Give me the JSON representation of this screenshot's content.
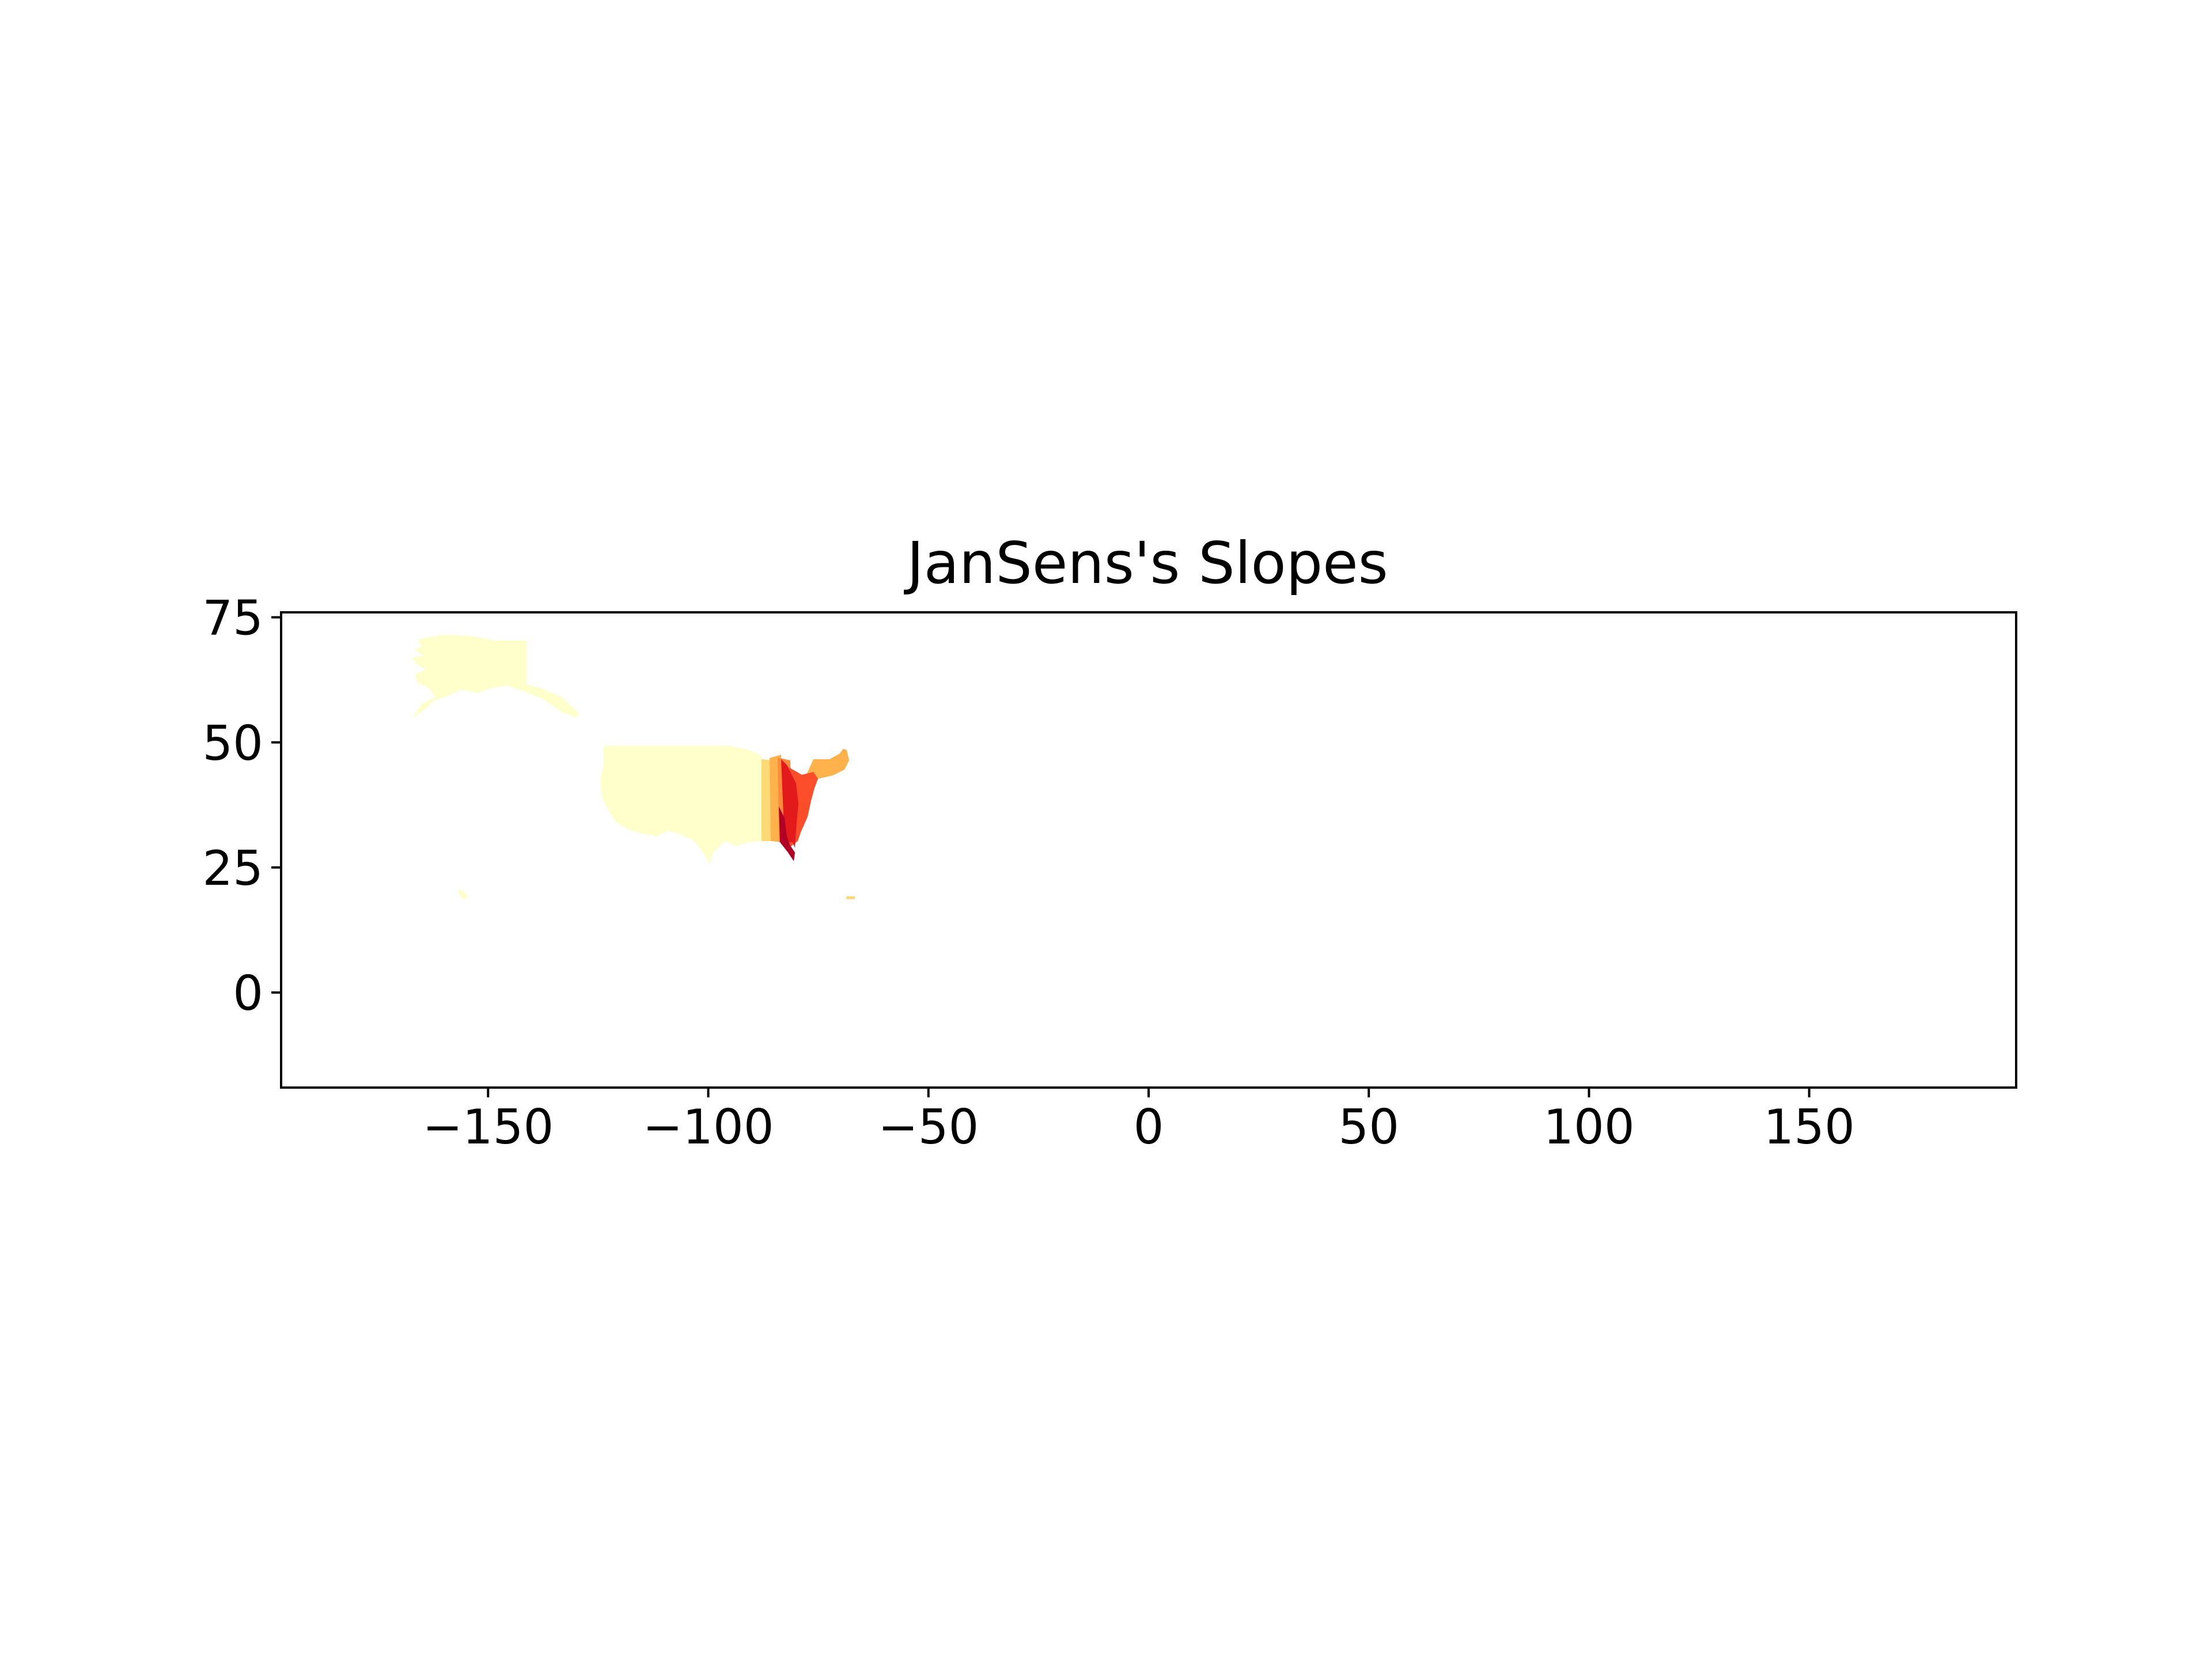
{
  "chart_data": {
    "type": "heatmap",
    "title": "JanSens's Slopes",
    "xlabel": "",
    "ylabel": "",
    "xlim": [
      -197,
      197
    ],
    "ylim": [
      -19,
      76
    ],
    "x_ticks": [
      -150,
      -100,
      -50,
      0,
      50,
      100,
      150
    ],
    "x_tick_labels": [
      "−150",
      "−100",
      "−50",
      "0",
      "50",
      "100",
      "150"
    ],
    "y_ticks": [
      75,
      50,
      25,
      0
    ],
    "y_tick_labels": [
      "75",
      "50",
      "25",
      "0"
    ],
    "grid": false,
    "legend": "none",
    "colormap": "YlOrRd",
    "colors": {
      "level_1": "#ffffcc",
      "level_2": "#fed976",
      "level_3": "#feb24c",
      "level_4": "#fd8d3c",
      "level_5": "#fc4e2a",
      "level_6": "#e31a1c",
      "level_7": "#b10026"
    }
  }
}
